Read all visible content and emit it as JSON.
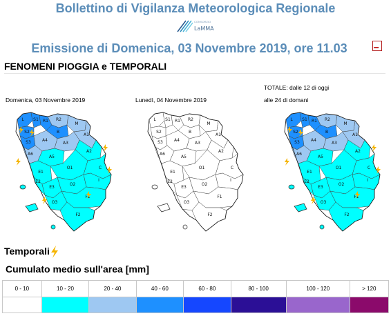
{
  "header": {
    "title": "Bollettino di Vigilanza Meteorologica Regionale",
    "logo_text": "LaMMA",
    "logo_small": "CONSORZIO",
    "emission": "Emissione di Domenica, 03 Novembre 2019, ore 11.03"
  },
  "section": {
    "title": "FENOMENI PIOGGIA e TEMPORALI"
  },
  "maps": {
    "date_1": "Domenica, 03 Novembre 2019",
    "date_2": "Lunedì, 04 Novembre 2019",
    "total_line1": "TOTALE: dalle 12 di oggi",
    "total_line2": "alle 24 di domani"
  },
  "temporali_label": "Temporali",
  "cumulato_label": "Cumulato medio sull'area [mm]",
  "legend": [
    {
      "label": "0 - 10",
      "color": "#ffffff"
    },
    {
      "label": "10 - 20",
      "color": "#00ffff"
    },
    {
      "label": "20 - 40",
      "color": "#9ec8f2"
    },
    {
      "label": "40 - 60",
      "color": "#1e90ff"
    },
    {
      "label": "60 - 80",
      "color": "#1547ff"
    },
    {
      "label": "80 - 100",
      "color": "#2b0f96"
    },
    {
      "label": "100 - 120",
      "color": "#9966cc"
    },
    {
      "label": "> 120",
      "color": "#8b0a6b"
    }
  ],
  "zone_labels": [
    "L",
    "S1",
    "S2",
    "S3",
    "R1",
    "R2",
    "B",
    "M",
    "A4",
    "A3",
    "A1",
    "A6",
    "A5",
    "A2",
    "E1",
    "E2",
    "O1",
    "O2",
    "C",
    "E3",
    "O3",
    "F1",
    "F2",
    "I"
  ],
  "colors": {
    "title": "#5b8db8",
    "bolt": "#f5b400"
  }
}
